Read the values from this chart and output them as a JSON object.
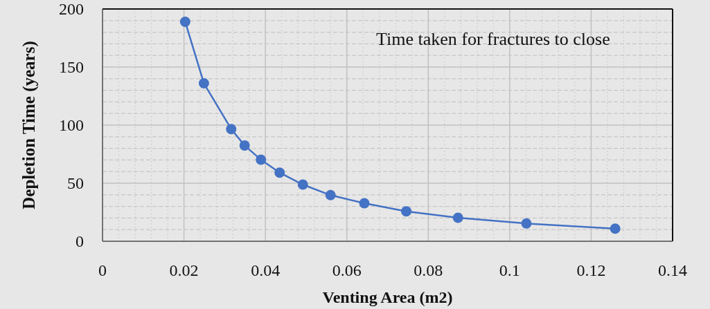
{
  "chart_data": {
    "type": "line",
    "xlabel": "Venting Area (m2)",
    "ylabel": "Depletion Time (years)",
    "annotations": [
      "Time taken for fractures to close"
    ],
    "x": [
      0.0203,
      0.0249,
      0.0316,
      0.0349,
      0.0389,
      0.0435,
      0.0492,
      0.056,
      0.0643,
      0.0746,
      0.0873,
      0.1041,
      0.1259
    ],
    "series": [
      {
        "color": "#4472c4",
        "values": [
          189,
          136,
          96.6,
          82.5,
          70.2,
          59.1,
          48.8,
          39.7,
          32.7,
          25.8,
          20.2,
          15.3,
          10.9
        ]
      }
    ],
    "xlim": [
      0,
      0.14
    ],
    "xticks": [
      0,
      {
        "value": 0.004,
        "label": null
      },
      {
        "value": 0.008,
        "label": null
      },
      {
        "value": 0.012,
        "label": null
      },
      {
        "value": 0.016,
        "label": null
      },
      0.02,
      {
        "value": 0.024,
        "label": null
      },
      {
        "value": 0.028,
        "label": null
      },
      {
        "value": 0.032,
        "label": null
      },
      {
        "value": 0.036,
        "label": null
      },
      0.04,
      {
        "value": 0.044,
        "label": null
      },
      {
        "value": 0.048,
        "label": null
      },
      {
        "value": 0.052,
        "label": null
      },
      {
        "value": 0.056,
        "label": null
      },
      0.06,
      {
        "value": 0.064,
        "label": null
      },
      {
        "value": 0.068,
        "label": null
      },
      {
        "value": 0.072,
        "label": null
      },
      {
        "value": 0.076,
        "label": null
      },
      0.08,
      {
        "value": 0.084,
        "label": null
      },
      {
        "value": 0.088,
        "label": null
      },
      {
        "value": 0.092,
        "label": null
      },
      {
        "value": 0.096,
        "label": null
      },
      0.1,
      {
        "value": 0.104,
        "label": null
      },
      {
        "value": 0.108,
        "label": null
      },
      {
        "value": 0.112,
        "label": null
      },
      {
        "value": 0.116,
        "label": null
      },
      0.12,
      {
        "value": 0.124,
        "label": null
      },
      {
        "value": 0.128,
        "label": null
      },
      {
        "value": 0.132,
        "label": null
      },
      {
        "value": 0.136,
        "label": null
      },
      0.14
    ],
    "ylim": [
      0,
      200
    ],
    "yticks": [
      0,
      {
        "value": 10,
        "label": null
      },
      {
        "value": 20,
        "label": null
      },
      {
        "value": 30,
        "label": null
      },
      {
        "value": 40,
        "label": null
      },
      50,
      {
        "value": 60,
        "label": null
      },
      {
        "value": 70,
        "label": null
      },
      {
        "value": 80,
        "label": null
      },
      {
        "value": 90,
        "label": null
      },
      100,
      {
        "value": 110,
        "label": null
      },
      {
        "value": 120,
        "label": null
      },
      {
        "value": 130,
        "label": null
      },
      {
        "value": 140,
        "label": null
      },
      150,
      {
        "value": 160,
        "label": null
      },
      {
        "value": 170,
        "label": null
      },
      {
        "value": 180,
        "label": null
      },
      {
        "value": 190,
        "label": null
      },
      200
    ],
    "grid": true,
    "marker": "circle",
    "line_style": "solid"
  }
}
